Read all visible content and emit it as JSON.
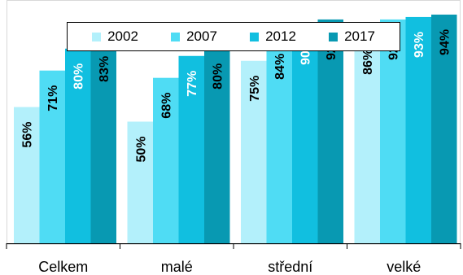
{
  "chart_data": {
    "type": "bar",
    "categories": [
      "Celkem",
      "malé",
      "střední",
      "velké"
    ],
    "series": [
      {
        "name": "2002",
        "color": "#b3f0fb",
        "values": [
          56,
          50,
          75,
          86
        ],
        "labels": [
          "56%",
          "50%",
          "75%",
          "86%"
        ],
        "label_color": "#000000"
      },
      {
        "name": "2007",
        "color": "#4fdcf4",
        "values": [
          71,
          68,
          84,
          92
        ],
        "labels": [
          "71%",
          "68%",
          "84%",
          "92%"
        ],
        "label_color": "#000000"
      },
      {
        "name": "2012",
        "color": "#11bfe0",
        "values": [
          80,
          77,
          90,
          93
        ],
        "labels": [
          "80%",
          "77%",
          "90%",
          "93%"
        ],
        "label_color": "#ffffff"
      },
      {
        "name": "2017",
        "color": "#0899b2",
        "values": [
          83,
          80,
          92,
          94
        ],
        "labels": [
          "83%",
          "80%",
          "92%",
          "94%"
        ],
        "label_color": "#000000"
      }
    ],
    "ylim": [
      0,
      100
    ],
    "grid": false,
    "legend_position": "top-center"
  }
}
